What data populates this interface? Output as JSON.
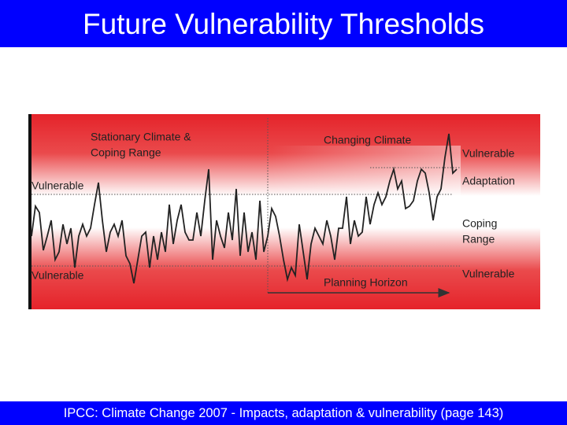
{
  "header": {
    "title": "Future Vulnerability Thresholds"
  },
  "figure": {
    "labels": [
      "Stationary Climate &",
      "Coping Range",
      "Changing Climate",
      "Vulnerable",
      "Adaptation",
      "Coping",
      "Range",
      "Vulnerable",
      "Vulnerable",
      "Vulnerable",
      "Planning Horizon"
    ]
  },
  "footer": {
    "citation": "IPCC: Climate Change 2007 - Impacts, adaptation & vulnerability (page 143)"
  }
}
